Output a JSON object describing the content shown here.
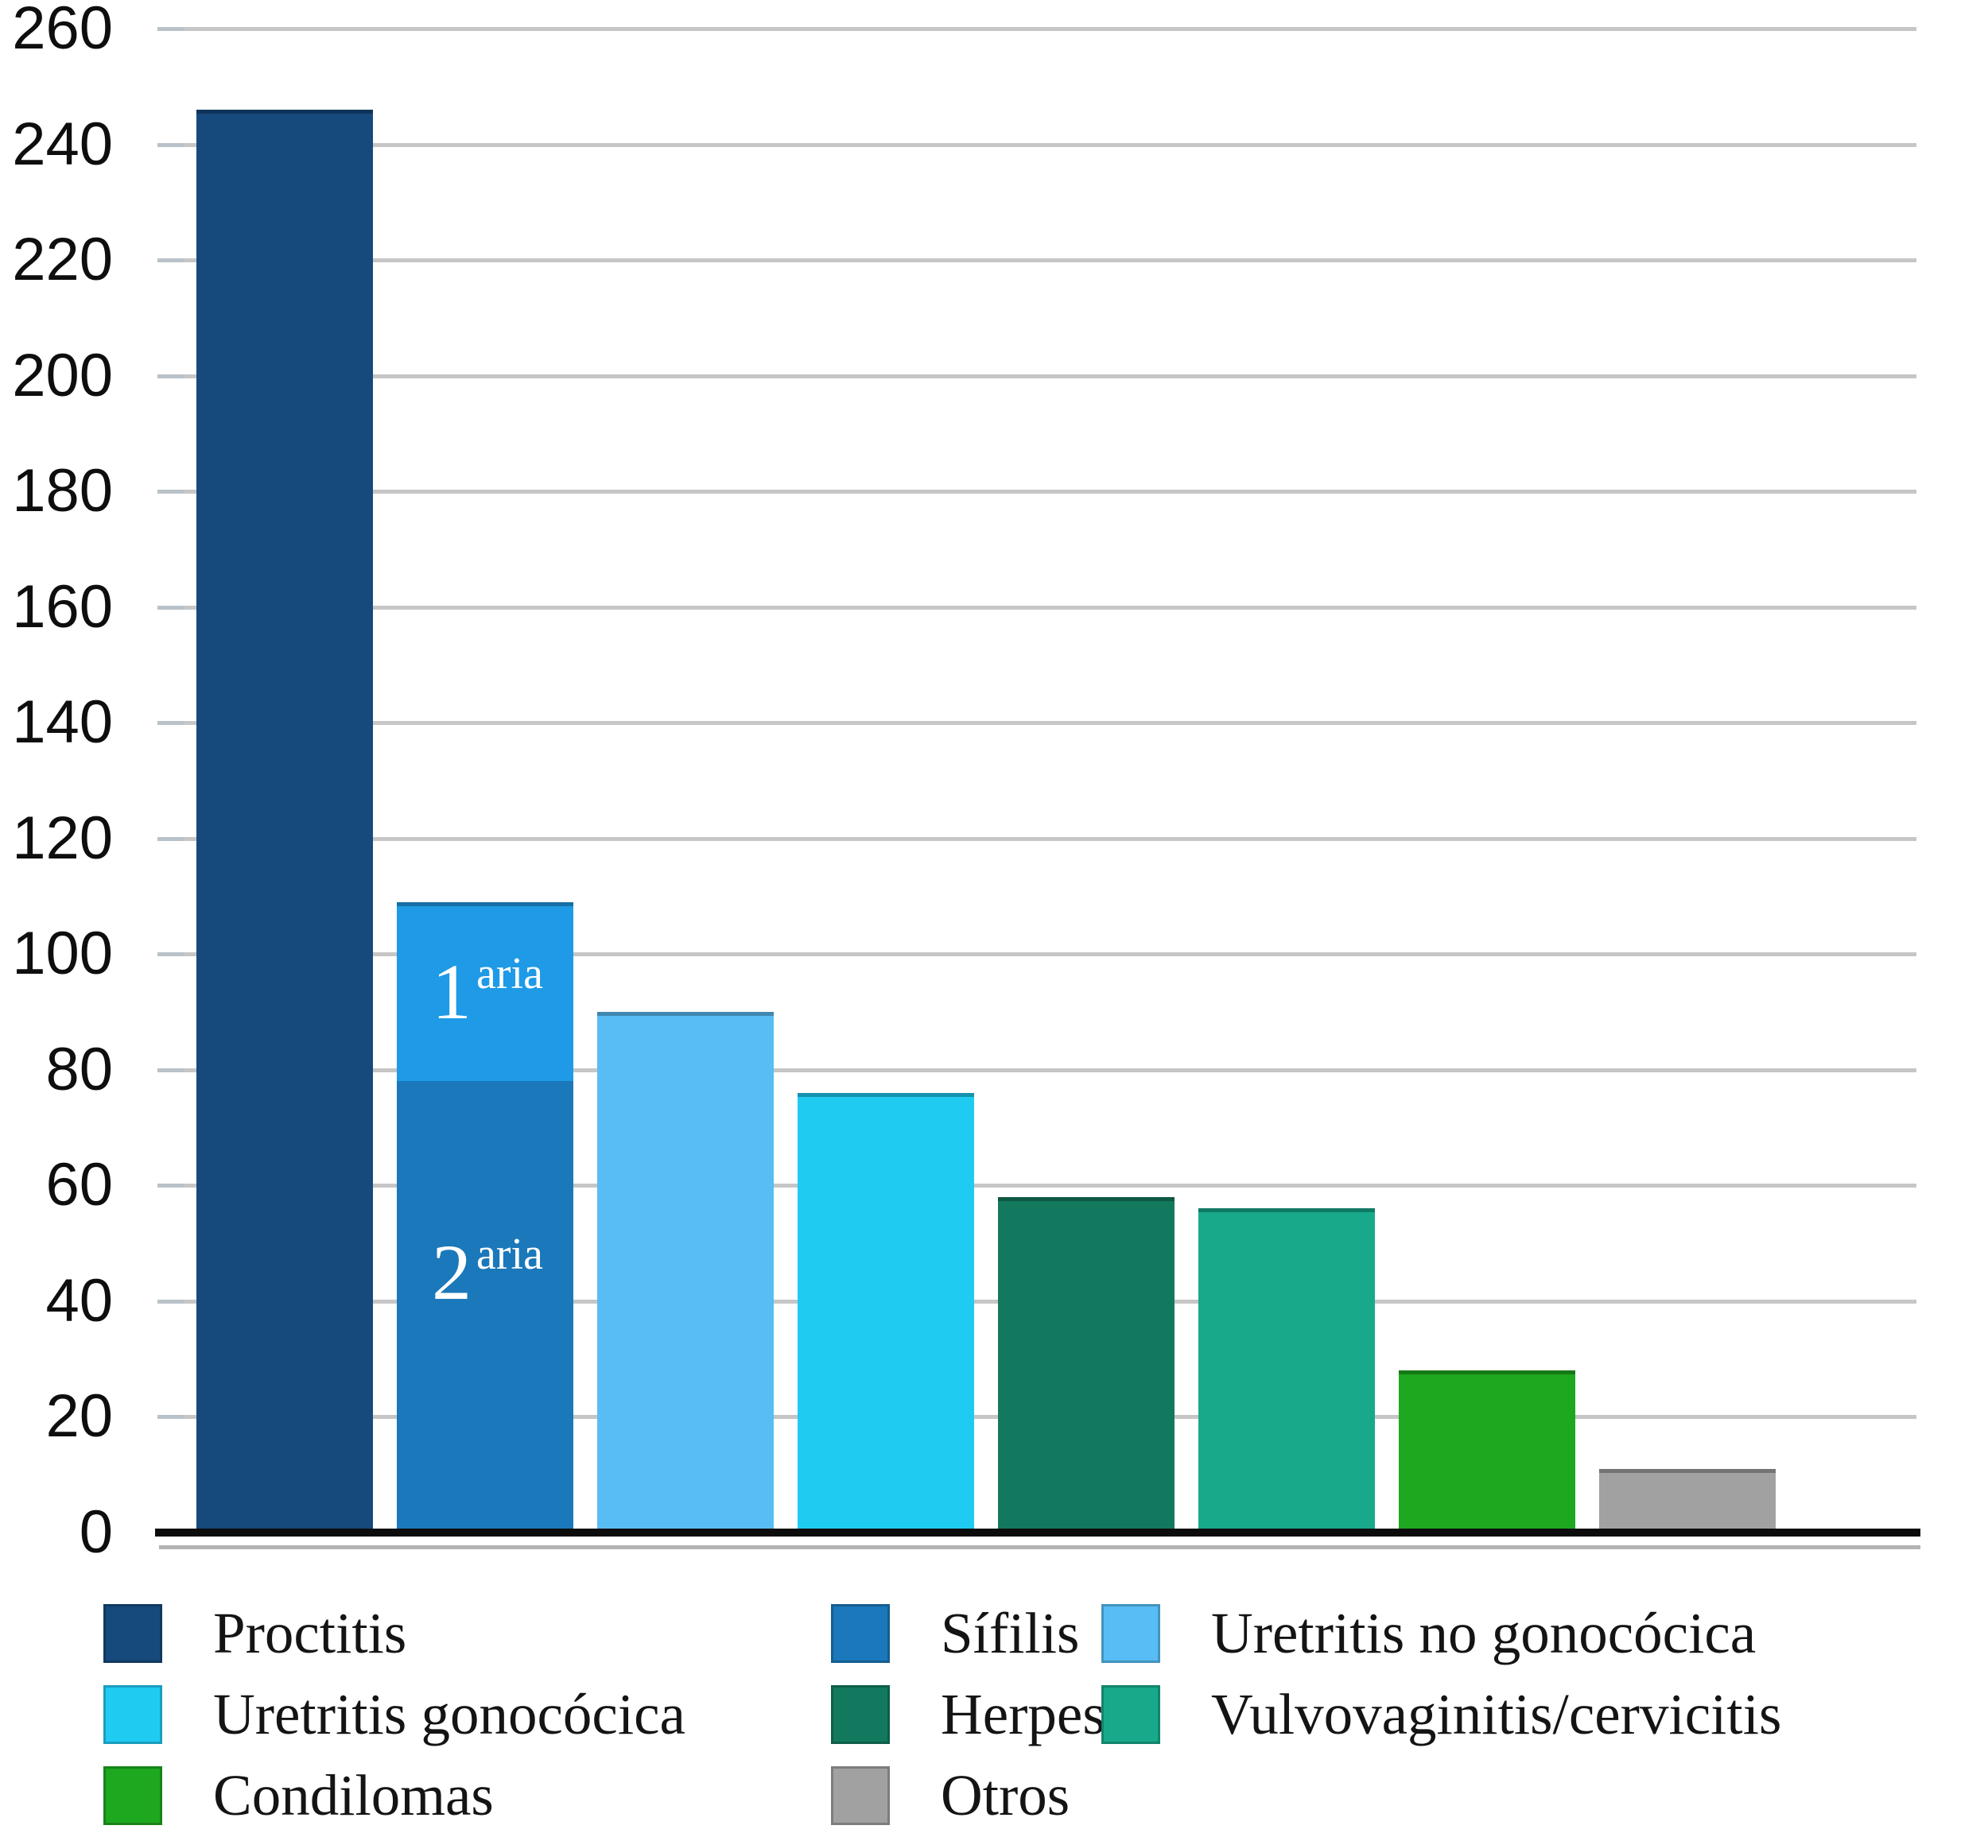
{
  "chart_data": {
    "type": "bar",
    "title": "",
    "xlabel": "",
    "ylabel": "",
    "ylim": [
      0,
      260
    ],
    "ytick_step": 20,
    "grid": true,
    "legend_position": "bottom",
    "yticks": [
      0,
      20,
      40,
      60,
      80,
      100,
      120,
      140,
      160,
      180,
      200,
      220,
      240,
      260
    ],
    "categories": [
      "Proctitis",
      "Sífilis",
      "Uretritis no gonocócica",
      "Uretritis gonocócica",
      "Herpes",
      "Vulvovaginitis/cervicitis",
      "Condilomas",
      "Otros"
    ],
    "bars": [
      {
        "category": "Proctitis",
        "value": 246,
        "color": "#16497c"
      },
      {
        "category": "Sífilis",
        "total": 109,
        "segments": [
          {
            "name": "secundaria",
            "label_base": "2",
            "label_sup": "aria",
            "value": 78,
            "color": "#1b78ba",
            "label_at_value": 45
          },
          {
            "name": "primaria",
            "label_base": "1",
            "label_sup": "aria",
            "value": 31,
            "color": "#1e9ae6",
            "label_at_value": 93.5
          }
        ]
      },
      {
        "category": "Uretritis no gonocócica",
        "value": 90,
        "color": "#58bdf4"
      },
      {
        "category": "Uretritis gonocócica",
        "value": 76,
        "color": "#20cbf2"
      },
      {
        "category": "Herpes",
        "value": 58,
        "color": "#13795e"
      },
      {
        "category": "Vulvovaginitis/cervicitis",
        "value": 56,
        "color": "#18a98b"
      },
      {
        "category": "Condilomas",
        "value": 28,
        "color": "#1ea81f"
      },
      {
        "category": "Otros",
        "value": 11,
        "color": "#a1a1a1"
      }
    ],
    "legend_items": [
      {
        "label": "Proctitis",
        "color": "#16497c"
      },
      {
        "label": "Sífilis",
        "color": "#1b78ba"
      },
      {
        "label": "Uretritis no gonocócica",
        "color": "#58bdf4"
      },
      {
        "label": "Uretritis gonocócica",
        "color": "#20cbf2"
      },
      {
        "label": "Herpes",
        "color": "#13795e"
      },
      {
        "label": "Vulvovaginitis/cervicitis",
        "color": "#18a98b"
      },
      {
        "label": "Condilomas",
        "color": "#1ea81f"
      },
      {
        "label": "Otros",
        "color": "#a1a1a1"
      }
    ]
  }
}
